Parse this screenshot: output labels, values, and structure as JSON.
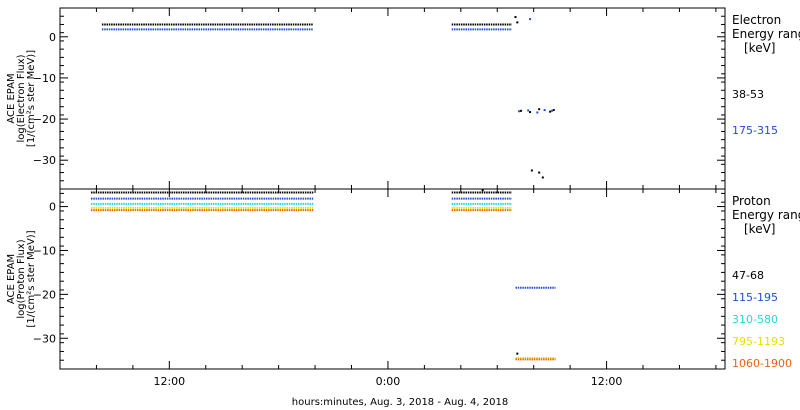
{
  "xlabel": "hours:minutes, Aug.  3, 2018 - Aug.  4, 2018",
  "x_tick_labels": [
    "12:00",
    "0:00",
    "12:00"
  ],
  "chart_data": [
    {
      "type": "scatter",
      "panel": "electron",
      "ylabel_lines": [
        "ACE EPAM",
        "log(Electron Flux)",
        "[1/(cm²s ster MeV)]"
      ],
      "legend_title_lines": [
        "Electron",
        "Energy ranges",
        "[keV]"
      ],
      "x_unit": "hours since 2018-08-03 00:00",
      "x_range": [
        6.0,
        42.5
      ],
      "ylim": [
        -37,
        7
      ],
      "y_ticks": [
        0,
        -10,
        -20,
        -30
      ],
      "y_tick_labels": [
        "0",
        "−10",
        "−20",
        "−30"
      ],
      "series": [
        {
          "name": "38-53",
          "color": "#000000",
          "segments": [
            {
              "x0": 8.3,
              "x1": 19.9,
              "y": 3.0
            },
            {
              "x0": 27.5,
              "x1": 30.8,
              "y": 3.0
            }
          ],
          "points": [
            [
              31.0,
              4.8
            ],
            [
              31.1,
              3.5
            ],
            [
              31.3,
              -18.0
            ],
            [
              31.8,
              -18.3
            ],
            [
              32.3,
              -17.6
            ],
            [
              32.9,
              -18.2
            ],
            [
              33.1,
              -17.8
            ],
            [
              31.9,
              -32.5
            ],
            [
              32.3,
              -33.0
            ],
            [
              32.5,
              -34.2
            ]
          ]
        },
        {
          "name": "175-315",
          "color": "#1f4fd8",
          "segments": [
            {
              "x0": 8.3,
              "x1": 19.9,
              "y": 1.8
            },
            {
              "x0": 27.5,
              "x1": 30.8,
              "y": 1.8
            }
          ],
          "points": [
            [
              31.8,
              4.3
            ],
            [
              31.2,
              -18.1
            ],
            [
              31.7,
              -17.9
            ],
            [
              32.2,
              -18.4
            ],
            [
              32.6,
              -17.8
            ],
            [
              33.0,
              -18.0
            ]
          ]
        }
      ]
    },
    {
      "type": "scatter",
      "panel": "proton",
      "ylabel_lines": [
        "ACE EPAM",
        "log(Proton Flux)",
        "[1/(cm²s ster MeV)]"
      ],
      "legend_title_lines": [
        "Proton",
        "Energy ranges",
        "[keV]"
      ],
      "x_unit": "hours since 2018-08-03 00:00",
      "x_range": [
        6.0,
        42.5
      ],
      "ylim": [
        -37,
        4
      ],
      "y_ticks": [
        0,
        -10,
        -20,
        -30
      ],
      "y_tick_labels": [
        "0",
        "−10",
        "−20",
        "−30"
      ],
      "series": [
        {
          "name": "47-68",
          "color": "#000000",
          "segments": [
            {
              "x0": 7.7,
              "x1": 19.9,
              "y": 3.2
            },
            {
              "x0": 27.5,
              "x1": 30.8,
              "y": 3.2
            }
          ],
          "points": [
            [
              29.2,
              3.7
            ],
            [
              31.1,
              -33.5
            ]
          ]
        },
        {
          "name": "115-195",
          "color": "#1f4fd8",
          "segments": [
            {
              "x0": 7.7,
              "x1": 19.9,
              "y": 1.8
            },
            {
              "x0": 27.5,
              "x1": 30.8,
              "y": 1.8
            },
            {
              "x0": 31.0,
              "x1": 33.2,
              "y": -18.5
            }
          ],
          "points": []
        },
        {
          "name": "310-580",
          "color": "#22d8e0",
          "segments": [
            {
              "x0": 7.7,
              "x1": 19.9,
              "y": 0.6
            },
            {
              "x0": 27.5,
              "x1": 30.8,
              "y": 0.6
            }
          ],
          "points": []
        },
        {
          "name": "795-1193",
          "color": "#e8e000",
          "segments": [
            {
              "x0": 7.7,
              "x1": 19.9,
              "y": -0.3
            },
            {
              "x0": 27.5,
              "x1": 30.8,
              "y": -0.3
            },
            {
              "x0": 31.0,
              "x1": 33.2,
              "y": -34.5
            }
          ],
          "points": []
        },
        {
          "name": "1060-1900",
          "color": "#f06010",
          "segments": [
            {
              "x0": 7.7,
              "x1": 19.9,
              "y": -0.8
            },
            {
              "x0": 27.5,
              "x1": 30.8,
              "y": -0.8
            },
            {
              "x0": 31.0,
              "x1": 33.2,
              "y": -34.8
            }
          ],
          "points": []
        }
      ]
    }
  ]
}
